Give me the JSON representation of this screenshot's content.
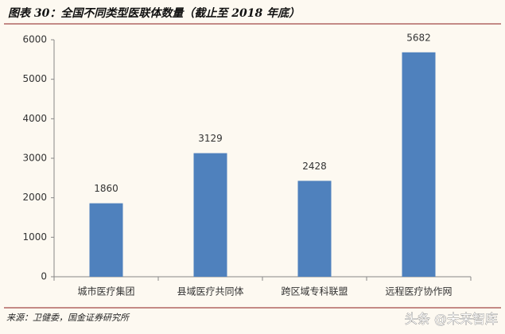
{
  "chart_data": {
    "type": "bar",
    "title": "图表 30：全国不同类型医联体数量（截止至 2018 年底）",
    "categories": [
      "城市医疗集团",
      "县域医疗共同体",
      "跨区域专科联盟",
      "远程医疗协作网"
    ],
    "values": [
      1860,
      3129,
      2428,
      5682
    ],
    "color": "#4f81bd",
    "ylim": [
      0,
      6000
    ],
    "yticks": [
      0,
      1000,
      2000,
      3000,
      4000,
      5000,
      6000
    ],
    "grid": false
  },
  "source": "来源：卫健委，国金证券研究所",
  "watermark": "头条 @未来智库"
}
